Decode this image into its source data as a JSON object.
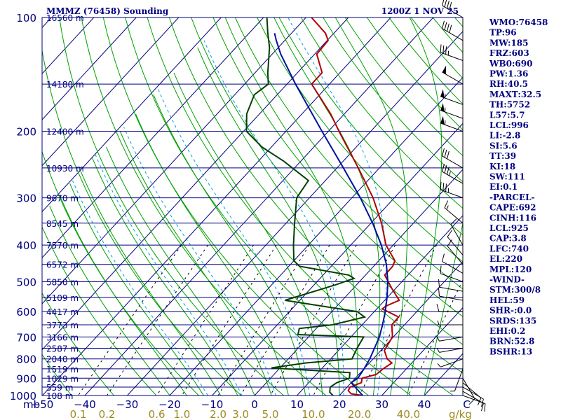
{
  "chart_data": {
    "type": "line",
    "title_left": "MMMZ (76458) Sounding",
    "title_right": "1200Z  1 NOV 25",
    "y_axis_unit": "mb",
    "x_axis_unit": "g/kg",
    "pressure_ticks": [
      100,
      200,
      300,
      400,
      500,
      600,
      700,
      800,
      900,
      1000
    ],
    "temperature_ticks": [
      "−50",
      "−40",
      "−30",
      "−20",
      "−10",
      "0",
      "10",
      "20",
      "30",
      "40",
      "C"
    ],
    "temperature_tick_values": [
      -50,
      -40,
      -30,
      -20,
      -10,
      0,
      10,
      20,
      30,
      40,
      50
    ],
    "mixing_ratio_ticks": [
      "0.1",
      "0.2",
      "0.6",
      "1.0",
      "2.0",
      "3.0",
      "5.0",
      "10.0",
      "20.0",
      "40.0"
    ],
    "mixing_ratio_values": [
      0.1,
      0.2,
      0.6,
      1.0,
      2.0,
      3.0,
      5.0,
      10.0,
      20.0,
      40.0
    ],
    "height_levels": [
      {
        "p": 100,
        "label": "16560 m"
      },
      {
        "p": 150,
        "label": "14180 m"
      },
      {
        "p": 200,
        "label": "12400 m"
      },
      {
        "p": 250,
        "label": "10930 m"
      },
      {
        "p": 300,
        "label": "9670 m"
      },
      {
        "p": 350,
        "label": "8545 m"
      },
      {
        "p": 400,
        "label": "7570 m"
      },
      {
        "p": 450,
        "label": "6572 m"
      },
      {
        "p": 500,
        "label": "5850 m"
      },
      {
        "p": 550,
        "label": "5109 m"
      },
      {
        "p": 600,
        "label": "4417 m"
      },
      {
        "p": 650,
        "label": "3773 m"
      },
      {
        "p": 700,
        "label": "3166 m"
      },
      {
        "p": 750,
        "label": "2587 m"
      },
      {
        "p": 800,
        "label": "2040 m"
      },
      {
        "p": 850,
        "label": "1519 m"
      },
      {
        "p": 900,
        "label": "1029 m"
      },
      {
        "p": 950,
        "label": "559 m"
      },
      {
        "p": 1000,
        "label": "108 m"
      }
    ],
    "series": [
      {
        "key": "temperature",
        "color": "#b00000",
        "points": [
          [
            1000,
            25.5
          ],
          [
            990,
            22.4
          ],
          [
            970,
            21.0
          ],
          [
            950,
            20.7
          ],
          [
            925,
            22.4
          ],
          [
            900,
            21.6
          ],
          [
            880,
            24.1
          ],
          [
            850,
            24.5
          ],
          [
            820,
            25.3
          ],
          [
            800,
            23.3
          ],
          [
            760,
            20.8
          ],
          [
            700,
            19.8
          ],
          [
            650,
            17.0
          ],
          [
            620,
            16.9
          ],
          [
            590,
            11.3
          ],
          [
            580,
            11.5
          ],
          [
            560,
            13.4
          ],
          [
            520,
            9.0
          ],
          [
            480,
            4.5
          ],
          [
            455,
            4.5
          ],
          [
            440,
            3.8
          ],
          [
            400,
            -1.7
          ],
          [
            350,
            -7.5
          ],
          [
            300,
            -15.0
          ],
          [
            250,
            -25.0
          ],
          [
            200,
            -37.5
          ],
          [
            180,
            -43.2
          ],
          [
            150,
            -54.2
          ],
          [
            140,
            -54.2
          ],
          [
            125,
            -59.5
          ],
          [
            115,
            -59.8
          ],
          [
            110,
            -62.0
          ],
          [
            100,
            -68.7
          ]
        ]
      },
      {
        "key": "dewpoint",
        "color": "#004000",
        "points": [
          [
            1000,
            18.5
          ],
          [
            980,
            17.0
          ],
          [
            950,
            16.0
          ],
          [
            925,
            16.6
          ],
          [
            900,
            18.6
          ],
          [
            870,
            17.5
          ],
          [
            850,
            1.5
          ],
          [
            845,
            -2.0
          ],
          [
            820,
            5.0
          ],
          [
            800,
            15.0
          ],
          [
            750,
            13.9
          ],
          [
            700,
            13.0
          ],
          [
            690,
            -3.0
          ],
          [
            665,
            -4.0
          ],
          [
            650,
            3.0
          ],
          [
            620,
            8.9
          ],
          [
            600,
            6.0
          ],
          [
            560,
            -13.5
          ],
          [
            510,
            -5.0
          ],
          [
            490,
            -2.0
          ],
          [
            480,
            -4.0
          ],
          [
            455,
            -17.5
          ],
          [
            440,
            -20.0
          ],
          [
            400,
            -23.5
          ],
          [
            350,
            -28.0
          ],
          [
            300,
            -33.0
          ],
          [
            270,
            -34.0
          ],
          [
            240,
            -44.0
          ],
          [
            220,
            -52.3
          ],
          [
            200,
            -59.3
          ],
          [
            180,
            -63.0
          ],
          [
            160,
            -65.4
          ],
          [
            150,
            -64.4
          ],
          [
            140,
            -67.0
          ],
          [
            120,
            -72.1
          ],
          [
            110,
            -75.6
          ],
          [
            100,
            -79.2
          ]
        ]
      },
      {
        "key": "parcel",
        "color": "#0010a0",
        "points": [
          [
            1000,
            25.5
          ],
          [
            925,
            20.0
          ],
          [
            900,
            20.6
          ],
          [
            850,
            20.0
          ],
          [
            800,
            19.2
          ],
          [
            750,
            18.0
          ],
          [
            700,
            16.7
          ],
          [
            650,
            14.8
          ],
          [
            600,
            12.6
          ],
          [
            550,
            9.9
          ],
          [
            500,
            6.7
          ],
          [
            450,
            2.6
          ],
          [
            400,
            -2.8
          ],
          [
            350,
            -9.6
          ],
          [
            300,
            -18.0
          ],
          [
            250,
            -28.5
          ],
          [
            200,
            -41.5
          ],
          [
            150,
            -58.0
          ],
          [
            125,
            -68.0
          ],
          [
            115,
            -72.0
          ],
          [
            110,
            -74.0
          ]
        ]
      }
    ],
    "winds": [
      {
        "p": 100,
        "dir": 300,
        "spd": 40
      },
      {
        "p": 115,
        "dir": 300,
        "spd": 40
      },
      {
        "p": 130,
        "dir": 290,
        "spd": 35
      },
      {
        "p": 150,
        "dir": 300,
        "spd": 50
      },
      {
        "p": 170,
        "dir": 290,
        "spd": 55
      },
      {
        "p": 185,
        "dir": 290,
        "spd": 55
      },
      {
        "p": 200,
        "dir": 290,
        "spd": 55
      },
      {
        "p": 250,
        "dir": 300,
        "spd": 30
      },
      {
        "p": 275,
        "dir": 300,
        "spd": 35
      },
      {
        "p": 300,
        "dir": 290,
        "spd": 35
      },
      {
        "p": 350,
        "dir": 310,
        "spd": 15
      },
      {
        "p": 400,
        "dir": 330,
        "spd": 10
      },
      {
        "p": 425,
        "dir": 320,
        "spd": 10
      },
      {
        "p": 450,
        "dir": 320,
        "spd": 10
      },
      {
        "p": 475,
        "dir": 300,
        "spd": 10
      },
      {
        "p": 500,
        "dir": 290,
        "spd": 10
      },
      {
        "p": 530,
        "dir": 280,
        "spd": 10
      },
      {
        "p": 560,
        "dir": 280,
        "spd": 10
      },
      {
        "p": 600,
        "dir": 270,
        "spd": 10
      },
      {
        "p": 650,
        "dir": 270,
        "spd": 5
      },
      {
        "p": 700,
        "dir": 260,
        "spd": 5
      },
      {
        "p": 750,
        "dir": 260,
        "spd": 5
      },
      {
        "p": 800,
        "dir": 250,
        "spd": 5
      },
      {
        "p": 850,
        "dir": 200,
        "spd": 5
      },
      {
        "p": 900,
        "dir": 150,
        "spd": 10
      },
      {
        "p": 925,
        "dir": 130,
        "spd": 10
      },
      {
        "p": 950,
        "dir": 120,
        "spd": 10
      },
      {
        "p": 975,
        "dir": 120,
        "spd": 10
      },
      {
        "p": 1000,
        "dir": 110,
        "spd": 10
      }
    ]
  },
  "indices": [
    "WMO:76458",
    "TP:96",
    "MW:185",
    "FRZ:603",
    "WB0:690",
    "PW:1.36",
    "RH:40.5",
    "MAXT:32.5",
    "TH:5752",
    "L57:5.7",
    "LCL:996",
    "LI:-2.8",
    "SI:5.6",
    "TT:39",
    "KI:18",
    "SW:111",
    "EI:0.1",
    "-PARCEL-",
    "CAPE:692",
    "CINH:116",
    "LCL:925",
    "CAP:3.8",
    "LFC:740",
    "EL:220",
    "MPL:120",
    "-WIND-",
    "STM:300/8",
    "HEL:59",
    "SHR-:0.0",
    "SRDS:135",
    "EHI:0.2",
    "BRN:52.8",
    "BSHR:13"
  ],
  "colors": {
    "isobar": "#000080",
    "isotherm": "#000080",
    "dry_adiabat": "#00a000",
    "moist_adiabat": "#00a000",
    "mixing_ratio": "#000000",
    "wet_bulb_dashed": "#00a0e0",
    "axis_text": "#000080",
    "mixing_ratio_text": "#a08a20"
  }
}
